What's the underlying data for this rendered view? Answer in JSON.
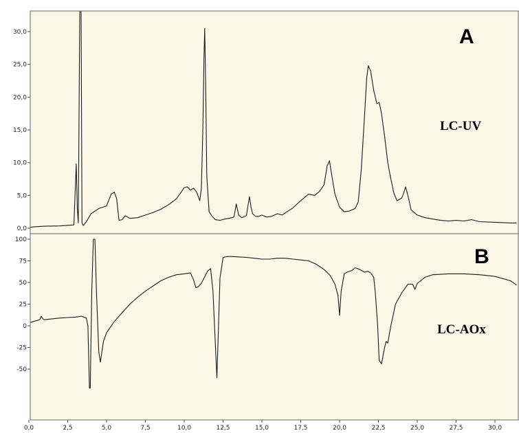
{
  "chart_data": [
    {
      "type": "line",
      "panel": "A",
      "annotation": "LC-UV",
      "xlabel": "",
      "ylabel": "",
      "xlim": [
        -0.2,
        31.4
      ],
      "ylim": [
        0,
        32
      ],
      "yticks": [
        "0,0",
        "5,0",
        "10,0",
        "15,0",
        "20,0",
        "25,0",
        "30,0"
      ],
      "ytick_values": [
        0,
        5,
        10,
        15,
        20,
        25,
        30
      ],
      "background": "#fbf8e8",
      "series": [
        {
          "x": [
            0.0,
            0.3,
            1.0,
            2.0,
            2.9,
            3.05,
            3.12,
            3.18,
            3.25,
            3.3,
            3.35,
            3.42,
            3.5,
            3.7,
            4.0,
            4.5,
            5.0,
            5.3,
            5.5,
            5.65,
            5.8,
            6.0,
            6.2,
            6.5,
            7.0,
            7.5,
            8.0,
            8.5,
            9.0,
            9.5,
            9.8,
            10.0,
            10.2,
            10.4,
            10.6,
            10.8,
            11.0,
            11.1,
            11.2,
            11.27,
            11.32,
            11.38,
            11.45,
            11.6,
            11.8,
            12.0,
            12.3,
            12.6,
            12.9,
            13.2,
            13.35,
            13.5,
            13.7,
            14.0,
            14.2,
            14.3,
            14.4,
            14.6,
            14.8,
            15.0,
            15.3,
            15.6,
            16.0,
            16.3,
            16.6,
            17.0,
            17.5,
            18.0,
            18.4,
            18.7,
            19.0,
            19.2,
            19.35,
            19.5,
            19.7,
            20.0,
            20.3,
            20.6,
            20.8,
            21.0,
            21.2,
            21.4,
            21.6,
            21.75,
            21.85,
            22.0,
            22.2,
            22.4,
            22.55,
            22.7,
            22.9,
            23.1,
            23.3,
            23.5,
            23.7,
            24.0,
            24.1,
            24.25,
            24.4,
            24.6,
            25.0,
            25.5,
            26.0,
            26.5,
            27.0,
            27.5,
            28.0,
            28.5,
            29.0,
            30.0,
            31.0,
            31.4
          ],
          "y": [
            0.1,
            0.2,
            0.3,
            0.35,
            0.5,
            9.8,
            3.0,
            0.8,
            25.0,
            40.0,
            40.0,
            0.8,
            0.4,
            1.0,
            2.2,
            3.0,
            3.4,
            5.2,
            5.5,
            4.5,
            1.2,
            1.3,
            1.9,
            1.5,
            1.6,
            2.0,
            2.4,
            2.9,
            3.6,
            4.5,
            5.5,
            6.2,
            6.3,
            5.8,
            6.1,
            5.5,
            4.2,
            6.0,
            15.0,
            26.0,
            30.5,
            22.0,
            8.0,
            2.5,
            1.8,
            1.3,
            1.2,
            1.4,
            1.5,
            1.7,
            3.7,
            2.0,
            1.6,
            1.9,
            4.8,
            3.2,
            2.2,
            1.8,
            1.8,
            2.0,
            1.7,
            1.8,
            2.2,
            2.0,
            2.5,
            3.1,
            4.2,
            5.2,
            5.0,
            5.6,
            6.6,
            9.5,
            10.3,
            8.0,
            5.2,
            3.2,
            2.5,
            2.6,
            2.8,
            3.0,
            4.0,
            9.0,
            17.0,
            23.0,
            24.8,
            24.0,
            21.0,
            19.0,
            19.2,
            17.5,
            14.0,
            10.0,
            7.5,
            5.3,
            4.2,
            4.6,
            5.2,
            6.3,
            5.0,
            2.8,
            2.0,
            1.6,
            1.4,
            1.2,
            1.1,
            1.2,
            1.1,
            1.3,
            1.0,
            0.9,
            0.8,
            0.8
          ]
        }
      ]
    },
    {
      "type": "line",
      "panel": "B",
      "annotation": "LC-AOx",
      "xlabel": "",
      "ylabel": "",
      "xlim": [
        -0.2,
        31.4
      ],
      "ylim": [
        -72,
        100
      ],
      "xticks": [
        "0,0",
        "2,5",
        "5,0",
        "7,5",
        "10,0",
        "12,5",
        "15,0",
        "17,5",
        "20,0",
        "22,5",
        "25,0",
        "27,5",
        "30,0"
      ],
      "xtick_values": [
        0,
        2.5,
        5,
        7.5,
        10,
        12.5,
        15,
        17.5,
        20,
        22.5,
        25,
        27.5,
        30
      ],
      "yticks": [
        "-50",
        "-25",
        "0",
        "25",
        "50",
        "75",
        "100"
      ],
      "ytick_values": [
        -50,
        -25,
        0,
        25,
        50,
        75,
        100
      ],
      "background": "#fbf8e8",
      "series": [
        {
          "x": [
            0.0,
            0.3,
            0.7,
            0.8,
            0.9,
            1.0,
            1.5,
            2.0,
            2.5,
            3.0,
            3.4,
            3.7,
            3.8,
            3.9,
            3.95,
            4.05,
            4.15,
            4.25,
            4.35,
            4.5,
            4.6,
            4.8,
            5.0,
            5.5,
            6.0,
            6.5,
            7.0,
            7.5,
            8.0,
            8.5,
            9.0,
            9.5,
            10.0,
            10.4,
            10.6,
            10.75,
            10.9,
            11.1,
            11.3,
            11.5,
            11.7,
            11.85,
            12.0,
            12.1,
            12.2,
            12.3,
            12.5,
            12.8,
            13.0,
            13.5,
            14.0,
            14.5,
            15.0,
            15.5,
            16.0,
            16.5,
            17.0,
            17.5,
            18.0,
            18.5,
            19.0,
            19.4,
            19.7,
            19.9,
            20.0,
            20.1,
            20.3,
            20.5,
            20.8,
            21.0,
            21.3,
            21.6,
            21.8,
            22.0,
            22.2,
            22.3,
            22.45,
            22.55,
            22.7,
            22.9,
            23.0,
            23.1,
            23.3,
            23.6,
            24.0,
            24.4,
            24.7,
            24.85,
            25.0,
            25.5,
            26.0,
            27.0,
            28.0,
            29.0,
            30.0,
            31.0,
            31.4
          ],
          "y": [
            3,
            5,
            7,
            11,
            8,
            7,
            8,
            9,
            9.5,
            10,
            11,
            9,
            0,
            -72,
            -72,
            40,
            100,
            100,
            40,
            -30,
            -42,
            -18,
            -8,
            5,
            15,
            25,
            33,
            40,
            46,
            52,
            56,
            59,
            60,
            61,
            53,
            44,
            45,
            49,
            56,
            63,
            66,
            40,
            -20,
            -60,
            -5,
            55,
            79,
            80,
            80,
            79.5,
            79,
            78,
            77,
            77,
            78,
            78,
            77,
            76,
            75,
            71,
            65,
            58,
            48,
            35,
            12,
            40,
            60,
            62,
            64,
            67,
            65,
            62,
            63,
            61,
            56,
            38,
            0,
            -40,
            -44,
            -25,
            -18,
            -20,
            0,
            25,
            38,
            48,
            48,
            42,
            49,
            56,
            59,
            60,
            60,
            59,
            57,
            52,
            47
          ]
        }
      ]
    }
  ],
  "colors": {
    "plot_background": "#fbf8e8",
    "trace": "#1a1a1a"
  }
}
